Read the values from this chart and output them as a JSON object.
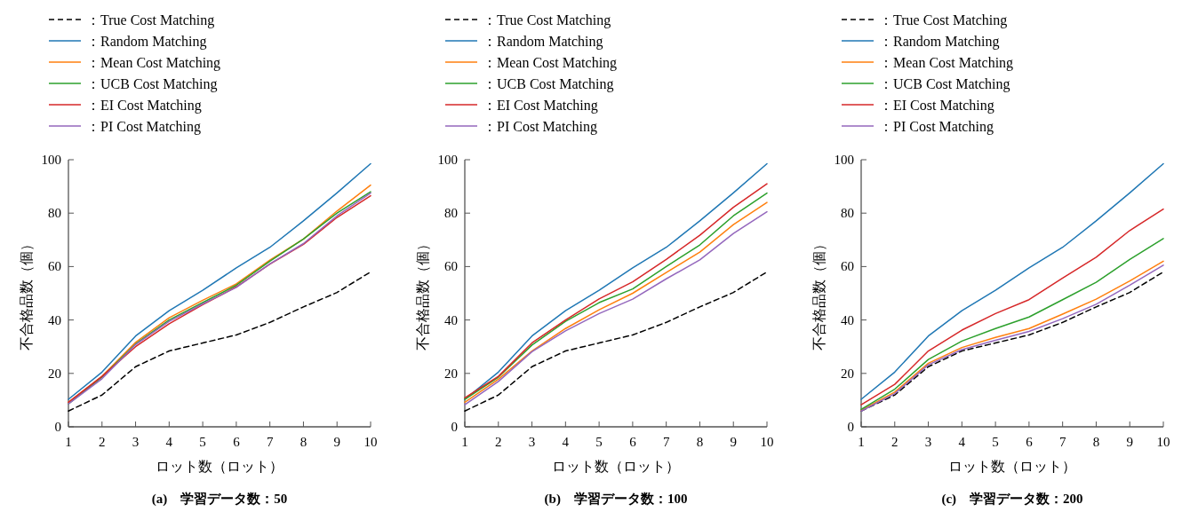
{
  "chart_data": [
    {
      "type": "line",
      "title": "(a)　学習データ数：50",
      "xlabel": "ロット数（ロット）",
      "ylabel": "不合格品数（個）",
      "x": [
        1,
        2,
        3,
        4,
        5,
        6,
        7,
        8,
        9,
        10
      ],
      "xlim": [
        1,
        10
      ],
      "ylim": [
        0,
        100
      ],
      "xticks": [
        1,
        2,
        3,
        4,
        5,
        6,
        7,
        8,
        9,
        10
      ],
      "yticks": [
        0,
        20,
        40,
        60,
        80,
        100
      ],
      "legend": "top",
      "series": [
        {
          "name": "：True Cost Matching",
          "color": "#000000",
          "line_style": "dashed",
          "values": [
            5.9,
            11.9,
            22.5,
            28.4,
            31.4,
            34.4,
            39.1,
            44.9,
            50.3,
            58
          ]
        },
        {
          "name": "：Random Matching",
          "color": "#1f77b4",
          "values": [
            10.3,
            20.5,
            34,
            43.5,
            51.1,
            59.5,
            67.2,
            77.1,
            87.6,
            98.5
          ]
        },
        {
          "name": "：Mean Cost Matching",
          "color": "#ff7f0e",
          "values": [
            9.2,
            18.9,
            31.6,
            40.8,
            47.4,
            53.5,
            62.4,
            70.3,
            80.8,
            90.5
          ]
        },
        {
          "name": "：UCB Cost Matching",
          "color": "#2ca02c",
          "values": [
            8.6,
            18.6,
            31,
            40,
            46.5,
            53,
            62,
            70.3,
            80,
            88
          ]
        },
        {
          "name": "：EI Cost Matching",
          "color": "#d62728",
          "values": [
            9.2,
            18.9,
            30,
            38.6,
            45.7,
            52.4,
            60.9,
            68.3,
            78.4,
            86.5
          ]
        },
        {
          "name": "：PI Cost Matching",
          "color": "#9467bd",
          "values": [
            8.6,
            18,
            30.8,
            39.5,
            46,
            52.2,
            61,
            68.6,
            79,
            87.5
          ]
        }
      ]
    },
    {
      "type": "line",
      "title": "(b)　学習データ数：100",
      "xlabel": "ロット数（ロット）",
      "ylabel": "不合格品数（個）",
      "x": [
        1,
        2,
        3,
        4,
        5,
        6,
        7,
        8,
        9,
        10
      ],
      "xlim": [
        1,
        10
      ],
      "ylim": [
        0,
        100
      ],
      "xticks": [
        1,
        2,
        3,
        4,
        5,
        6,
        7,
        8,
        9,
        10
      ],
      "yticks": [
        0,
        20,
        40,
        60,
        80,
        100
      ],
      "legend": "top",
      "series": [
        {
          "name": "：True Cost Matching",
          "color": "#000000",
          "line_style": "dashed",
          "values": [
            5.9,
            11.9,
            22.5,
            28.4,
            31.4,
            34.4,
            39.1,
            44.9,
            50.3,
            58
          ]
        },
        {
          "name": "：Random Matching",
          "color": "#1f77b4",
          "values": [
            10.3,
            20.5,
            34,
            43.5,
            51.1,
            59.5,
            67.2,
            77.1,
            87.6,
            98.5
          ]
        },
        {
          "name": "：Mean Cost Matching",
          "color": "#ff7f0e",
          "values": [
            9.2,
            17.8,
            28.4,
            36.8,
            43.8,
            50,
            57.8,
            65.4,
            75.7,
            84
          ]
        },
        {
          "name": "：UCB Cost Matching",
          "color": "#2ca02c",
          "values": [
            10.3,
            18.6,
            30.6,
            39.5,
            46.5,
            51.6,
            60,
            68.1,
            79,
            87.5
          ]
        },
        {
          "name": "：EI Cost Matching",
          "color": "#d62728",
          "values": [
            10.8,
            18.9,
            31.4,
            40,
            47.9,
            54.3,
            62.7,
            71.7,
            82.2,
            91
          ]
        },
        {
          "name": "：PI Cost Matching",
          "color": "#9467bd",
          "values": [
            8.3,
            17,
            28.1,
            35.9,
            42.4,
            47.8,
            55.4,
            62.5,
            72.4,
            80.5
          ]
        }
      ]
    },
    {
      "type": "line",
      "title": "(c)　学習データ数：200",
      "xlabel": "ロット数（ロット）",
      "ylabel": "不合格品数（個）",
      "x": [
        1,
        2,
        3,
        4,
        5,
        6,
        7,
        8,
        9,
        10
      ],
      "xlim": [
        1,
        10
      ],
      "ylim": [
        0,
        100
      ],
      "xticks": [
        1,
        2,
        3,
        4,
        5,
        6,
        7,
        8,
        9,
        10
      ],
      "yticks": [
        0,
        20,
        40,
        60,
        80,
        100
      ],
      "legend": "top",
      "series": [
        {
          "name": "：True Cost Matching",
          "color": "#000000",
          "line_style": "dashed",
          "values": [
            5.9,
            11.9,
            22.5,
            28.4,
            31.4,
            34.4,
            39.1,
            44.9,
            50.3,
            58
          ]
        },
        {
          "name": "：Random Matching",
          "color": "#1f77b4",
          "values": [
            10.3,
            20.5,
            34,
            43.5,
            51.1,
            59.5,
            67.2,
            77.1,
            87.6,
            98.5
          ]
        },
        {
          "name": "：Mean Cost Matching",
          "color": "#ff7f0e",
          "values": [
            6.2,
            13,
            23.8,
            29.7,
            33.5,
            36.8,
            42.2,
            47.8,
            54.6,
            62
          ]
        },
        {
          "name": "：UCB Cost Matching",
          "color": "#2ca02c",
          "values": [
            6.5,
            14.1,
            25.2,
            32.1,
            36.8,
            41.1,
            47.6,
            54.1,
            62.7,
            70.5
          ]
        },
        {
          "name": "：EI Cost Matching",
          "color": "#d62728",
          "values": [
            8.3,
            15.9,
            28.4,
            36.2,
            42.4,
            47.6,
            55.7,
            63.5,
            73.5,
            81.5
          ]
        },
        {
          "name": "：PI Cost Matching",
          "color": "#9467bd",
          "values": [
            5.9,
            12.4,
            23.2,
            28.9,
            32.4,
            35.7,
            40.5,
            45.9,
            53,
            60.5
          ]
        }
      ]
    }
  ]
}
